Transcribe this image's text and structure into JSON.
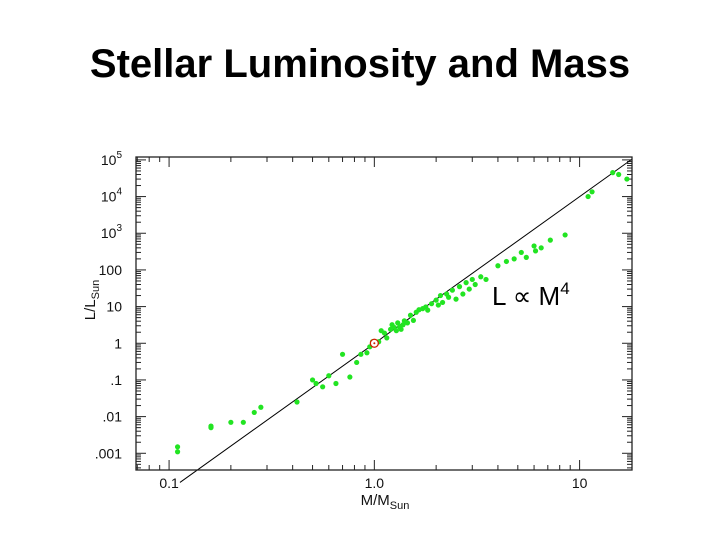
{
  "slide": {
    "title": "Stellar Luminosity and Mass"
  },
  "colors": {
    "points": "#22e422",
    "line": "#000000",
    "sun": "#cc2200",
    "frame": "#222222"
  },
  "chart_data": {
    "type": "scatter",
    "title": "Stellar Luminosity and Mass",
    "xlabel": {
      "main": "M/M",
      "sub": "Sun"
    },
    "ylabel": {
      "main": "L/L",
      "sub": "Sun"
    },
    "xscale": "log",
    "yscale": "log",
    "xlim": [
      0.069,
      18
    ],
    "ylim": [
      0.00035,
      120000
    ],
    "xticks": [
      {
        "value": 0.1,
        "label": "0.1"
      },
      {
        "value": 1,
        "label": "1.0"
      },
      {
        "value": 10,
        "label": "10"
      }
    ],
    "yticks": [
      {
        "value": 0.001,
        "label": ".001"
      },
      {
        "value": 0.01,
        "label": ".01"
      },
      {
        "value": 0.1,
        "label": ".1"
      },
      {
        "value": 1,
        "label": "1"
      },
      {
        "value": 10,
        "label": "10"
      },
      {
        "value": 100,
        "label": "100"
      },
      {
        "value": 1000,
        "label": "10",
        "exp": "3"
      },
      {
        "value": 10000,
        "label": "10",
        "exp": "4"
      },
      {
        "value": 100000,
        "label": "10",
        "exp": "5"
      }
    ],
    "annotation": {
      "text": "L ∝ M",
      "exp": "4"
    },
    "fit_line": {
      "x": [
        0.113,
        18
      ],
      "y": [
        0.00016,
        105000
      ]
    },
    "sun_marker": {
      "x": 1.0,
      "y": 1.0
    },
    "points": [
      {
        "x": 0.11,
        "y": 0.0015
      },
      {
        "x": 0.11,
        "y": 0.0011
      },
      {
        "x": 0.16,
        "y": 0.0055
      },
      {
        "x": 0.16,
        "y": 0.005
      },
      {
        "x": 0.2,
        "y": 0.007
      },
      {
        "x": 0.23,
        "y": 0.007
      },
      {
        "x": 0.26,
        "y": 0.013
      },
      {
        "x": 0.28,
        "y": 0.018
      },
      {
        "x": 0.42,
        "y": 0.025
      },
      {
        "x": 0.5,
        "y": 0.1
      },
      {
        "x": 0.52,
        "y": 0.08
      },
      {
        "x": 0.56,
        "y": 0.065
      },
      {
        "x": 0.6,
        "y": 0.13
      },
      {
        "x": 0.65,
        "y": 0.08
      },
      {
        "x": 0.7,
        "y": 0.5
      },
      {
        "x": 0.76,
        "y": 0.12
      },
      {
        "x": 0.82,
        "y": 0.3
      },
      {
        "x": 0.86,
        "y": 0.5
      },
      {
        "x": 0.92,
        "y": 0.55
      },
      {
        "x": 0.95,
        "y": 0.8
      },
      {
        "x": 0.98,
        "y": 1.1
      },
      {
        "x": 1.05,
        "y": 1.1
      },
      {
        "x": 1.08,
        "y": 2.2
      },
      {
        "x": 1.12,
        "y": 1.9
      },
      {
        "x": 1.15,
        "y": 1.4
      },
      {
        "x": 1.2,
        "y": 2.4
      },
      {
        "x": 1.22,
        "y": 3.2
      },
      {
        "x": 1.25,
        "y": 2.7
      },
      {
        "x": 1.28,
        "y": 2.2
      },
      {
        "x": 1.3,
        "y": 3.6
      },
      {
        "x": 1.33,
        "y": 2.8
      },
      {
        "x": 1.35,
        "y": 2.4
      },
      {
        "x": 1.38,
        "y": 3.2
      },
      {
        "x": 1.4,
        "y": 4.1
      },
      {
        "x": 1.45,
        "y": 3.6
      },
      {
        "x": 1.5,
        "y": 5.8
      },
      {
        "x": 1.55,
        "y": 4.2
      },
      {
        "x": 1.6,
        "y": 7.0
      },
      {
        "x": 1.65,
        "y": 8.2
      },
      {
        "x": 1.72,
        "y": 8.8
      },
      {
        "x": 1.78,
        "y": 9.8
      },
      {
        "x": 1.82,
        "y": 8.0
      },
      {
        "x": 1.9,
        "y": 12
      },
      {
        "x": 2.0,
        "y": 15
      },
      {
        "x": 2.05,
        "y": 11
      },
      {
        "x": 2.1,
        "y": 20
      },
      {
        "x": 2.15,
        "y": 13
      },
      {
        "x": 2.25,
        "y": 22
      },
      {
        "x": 2.3,
        "y": 18
      },
      {
        "x": 2.4,
        "y": 28
      },
      {
        "x": 2.5,
        "y": 16
      },
      {
        "x": 2.6,
        "y": 35
      },
      {
        "x": 2.7,
        "y": 22
      },
      {
        "x": 2.8,
        "y": 45
      },
      {
        "x": 2.9,
        "y": 30
      },
      {
        "x": 3.0,
        "y": 55
      },
      {
        "x": 3.1,
        "y": 40
      },
      {
        "x": 3.3,
        "y": 65
      },
      {
        "x": 3.5,
        "y": 55
      },
      {
        "x": 4.0,
        "y": 130
      },
      {
        "x": 4.4,
        "y": 170
      },
      {
        "x": 4.8,
        "y": 200
      },
      {
        "x": 5.2,
        "y": 300
      },
      {
        "x": 5.5,
        "y": 220
      },
      {
        "x": 6.0,
        "y": 450
      },
      {
        "x": 6.1,
        "y": 330
      },
      {
        "x": 6.5,
        "y": 400
      },
      {
        "x": 7.2,
        "y": 650
      },
      {
        "x": 8.5,
        "y": 900
      },
      {
        "x": 11,
        "y": 10000
      },
      {
        "x": 11.5,
        "y": 13500
      },
      {
        "x": 14.5,
        "y": 45000
      },
      {
        "x": 15.5,
        "y": 40000
      },
      {
        "x": 17,
        "y": 30000
      }
    ]
  }
}
